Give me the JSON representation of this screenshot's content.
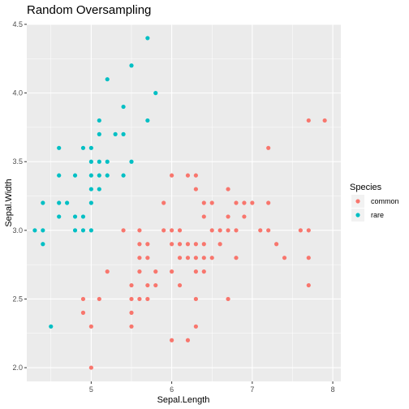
{
  "chart_data": {
    "type": "scatter",
    "title": "Random Oversampling",
    "xlabel": "Sepal.Length",
    "ylabel": "Sepal.Width",
    "xlim": [
      4.2,
      8.1
    ],
    "ylim": [
      1.9,
      4.5
    ],
    "x_ticks": [
      5,
      6,
      7,
      8
    ],
    "y_ticks": [
      2.0,
      2.5,
      3.0,
      3.5,
      4.0,
      4.5
    ],
    "x_tick_labels": [
      "5",
      "6",
      "7",
      "8"
    ],
    "y_tick_labels": [
      "2.0",
      "2.5",
      "3.0",
      "3.5",
      "4.0",
      "4.5"
    ],
    "grid": true,
    "legend": {
      "title": "Species",
      "position": "right",
      "entries": [
        {
          "label": "common",
          "color": "#F8766D"
        },
        {
          "label": "rare",
          "color": "#00BFC4"
        }
      ]
    },
    "series": [
      {
        "name": "common",
        "color": "#F8766D",
        "points": [
          [
            4.9,
            2.4
          ],
          [
            4.9,
            2.5
          ],
          [
            5.0,
            2.0
          ],
          [
            5.0,
            2.3
          ],
          [
            5.1,
            2.5
          ],
          [
            5.2,
            2.7
          ],
          [
            5.4,
            3.0
          ],
          [
            5.5,
            2.3
          ],
          [
            5.5,
            2.4
          ],
          [
            5.5,
            2.5
          ],
          [
            5.5,
            2.6
          ],
          [
            5.6,
            2.5
          ],
          [
            5.6,
            2.7
          ],
          [
            5.6,
            2.8
          ],
          [
            5.6,
            2.9
          ],
          [
            5.6,
            3.0
          ],
          [
            5.7,
            2.5
          ],
          [
            5.7,
            2.6
          ],
          [
            5.7,
            2.8
          ],
          [
            5.7,
            2.9
          ],
          [
            5.8,
            2.6
          ],
          [
            5.8,
            2.7
          ],
          [
            5.9,
            3.0
          ],
          [
            5.9,
            3.2
          ],
          [
            6.0,
            2.2
          ],
          [
            6.0,
            2.7
          ],
          [
            6.0,
            2.9
          ],
          [
            6.0,
            3.0
          ],
          [
            6.0,
            3.4
          ],
          [
            6.1,
            2.6
          ],
          [
            6.1,
            2.8
          ],
          [
            6.1,
            2.9
          ],
          [
            6.1,
            3.0
          ],
          [
            6.2,
            2.2
          ],
          [
            6.2,
            2.8
          ],
          [
            6.2,
            2.9
          ],
          [
            6.2,
            3.4
          ],
          [
            6.3,
            2.3
          ],
          [
            6.3,
            2.5
          ],
          [
            6.3,
            2.7
          ],
          [
            6.3,
            2.8
          ],
          [
            6.3,
            2.9
          ],
          [
            6.3,
            3.3
          ],
          [
            6.3,
            3.4
          ],
          [
            6.4,
            2.7
          ],
          [
            6.4,
            2.8
          ],
          [
            6.4,
            2.9
          ],
          [
            6.4,
            3.1
          ],
          [
            6.4,
            3.2
          ],
          [
            6.5,
            2.8
          ],
          [
            6.5,
            3.0
          ],
          [
            6.5,
            3.2
          ],
          [
            6.6,
            2.9
          ],
          [
            6.6,
            3.0
          ],
          [
            6.7,
            2.5
          ],
          [
            6.7,
            3.0
          ],
          [
            6.7,
            3.1
          ],
          [
            6.7,
            3.3
          ],
          [
            6.8,
            2.8
          ],
          [
            6.8,
            3.0
          ],
          [
            6.8,
            3.2
          ],
          [
            6.9,
            3.1
          ],
          [
            6.9,
            3.2
          ],
          [
            7.0,
            3.2
          ],
          [
            7.1,
            3.0
          ],
          [
            7.2,
            3.0
          ],
          [
            7.2,
            3.2
          ],
          [
            7.2,
            3.6
          ],
          [
            7.3,
            2.9
          ],
          [
            7.4,
            2.8
          ],
          [
            7.6,
            3.0
          ],
          [
            7.7,
            2.6
          ],
          [
            7.7,
            2.8
          ],
          [
            7.7,
            3.0
          ],
          [
            7.7,
            3.8
          ],
          [
            7.9,
            3.8
          ]
        ]
      },
      {
        "name": "rare",
        "color": "#00BFC4",
        "points": [
          [
            4.3,
            3.0
          ],
          [
            4.4,
            2.9
          ],
          [
            4.4,
            3.0
          ],
          [
            4.4,
            3.2
          ],
          [
            4.5,
            2.3
          ],
          [
            4.6,
            3.1
          ],
          [
            4.6,
            3.2
          ],
          [
            4.6,
            3.4
          ],
          [
            4.6,
            3.6
          ],
          [
            4.7,
            3.2
          ],
          [
            4.8,
            3.0
          ],
          [
            4.8,
            3.1
          ],
          [
            4.8,
            3.4
          ],
          [
            4.9,
            3.0
          ],
          [
            4.9,
            3.1
          ],
          [
            4.9,
            3.6
          ],
          [
            5.0,
            3.0
          ],
          [
            5.0,
            3.2
          ],
          [
            5.0,
            3.3
          ],
          [
            5.0,
            3.4
          ],
          [
            5.0,
            3.5
          ],
          [
            5.0,
            3.6
          ],
          [
            5.1,
            3.3
          ],
          [
            5.1,
            3.4
          ],
          [
            5.1,
            3.5
          ],
          [
            5.1,
            3.7
          ],
          [
            5.1,
            3.8
          ],
          [
            5.2,
            3.4
          ],
          [
            5.2,
            3.5
          ],
          [
            5.2,
            4.1
          ],
          [
            5.3,
            3.7
          ],
          [
            5.4,
            3.4
          ],
          [
            5.4,
            3.7
          ],
          [
            5.4,
            3.9
          ],
          [
            5.5,
            3.5
          ],
          [
            5.5,
            4.2
          ],
          [
            5.7,
            3.8
          ],
          [
            5.7,
            4.4
          ],
          [
            5.8,
            4.0
          ]
        ]
      }
    ]
  }
}
